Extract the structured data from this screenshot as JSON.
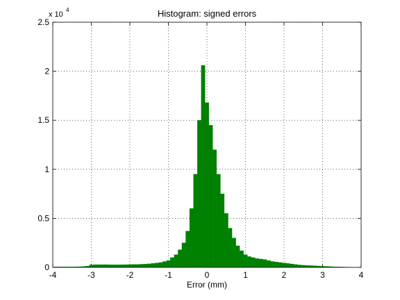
{
  "chart_data": {
    "type": "histogram",
    "title": "Histogram: signed errors",
    "xlabel": "Error (mm)",
    "y_multiplier": "x 10",
    "y_multiplier_exponent": "4",
    "color": "#008000",
    "grid": true,
    "xlim": [
      -4,
      4
    ],
    "xticks": [
      -4,
      -3,
      -2,
      -1,
      0,
      1,
      2,
      3,
      4
    ],
    "ylim": [
      0,
      2.5
    ],
    "yticks": [
      0,
      0.5,
      1,
      1.5,
      2,
      2.5
    ],
    "bins": [
      -3.95,
      -3.85,
      -3.75,
      -3.65,
      -3.55,
      -3.45,
      -3.35,
      -3.25,
      -3.15,
      -3.05,
      -2.95,
      -2.85,
      -2.75,
      -2.65,
      -2.55,
      -2.45,
      -2.35,
      -2.25,
      -2.15,
      -2.05,
      -1.95,
      -1.85,
      -1.75,
      -1.65,
      -1.55,
      -1.45,
      -1.35,
      -1.25,
      -1.15,
      -1.05,
      -0.95,
      -0.85,
      -0.75,
      -0.65,
      -0.55,
      -0.45,
      -0.35,
      -0.25,
      -0.15,
      -0.05,
      0.05,
      0.15,
      0.25,
      0.35,
      0.45,
      0.55,
      0.65,
      0.75,
      0.85,
      0.95,
      1.05,
      1.15,
      1.25,
      1.35,
      1.45,
      1.55,
      1.65,
      1.75,
      1.85,
      1.95,
      2.05,
      2.15,
      2.25,
      2.35,
      2.45,
      2.55,
      2.65,
      2.75,
      2.85,
      2.95,
      3.05,
      3.15,
      3.25,
      3.35,
      3.45,
      3.55,
      3.65,
      3.75
    ],
    "values": [
      0.005,
      0.005,
      0.005,
      0.005,
      0.005,
      0.006,
      0.007,
      0.008,
      0.012,
      0.025,
      0.028,
      0.028,
      0.028,
      0.028,
      0.027,
      0.027,
      0.027,
      0.027,
      0.028,
      0.028,
      0.03,
      0.03,
      0.032,
      0.034,
      0.036,
      0.04,
      0.045,
      0.05,
      0.06,
      0.07,
      0.1,
      0.13,
      0.18,
      0.25,
      0.37,
      0.6,
      0.95,
      1.5,
      2.06,
      1.68,
      1.45,
      1.2,
      0.95,
      0.75,
      0.55,
      0.4,
      0.3,
      0.22,
      0.17,
      0.13,
      0.11,
      0.1,
      0.09,
      0.085,
      0.08,
      0.07,
      0.06,
      0.055,
      0.05,
      0.045,
      0.04,
      0.035,
      0.03,
      0.025,
      0.022,
      0.02,
      0.018,
      0.016,
      0.014,
      0.012,
      0.01,
      0.008,
      0.006,
      0.005,
      0.004,
      0.003,
      0.002
    ]
  }
}
